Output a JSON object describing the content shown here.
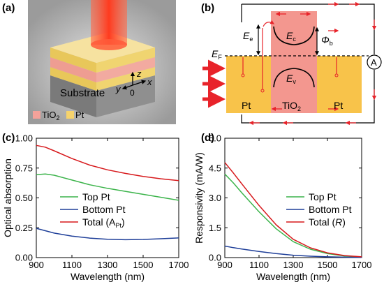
{
  "panel_a": {
    "label": "(a)",
    "substrate_label": "Substrate",
    "axis_z": "z",
    "axis_y": "y",
    "axis_x": "x",
    "axis_origin": "0",
    "legend": [
      {
        "name": "TiO",
        "sub": "2",
        "color": "#f4a29a"
      },
      {
        "name": "Pt",
        "sub": "",
        "color": "#f6d36c"
      }
    ]
  },
  "panel_b": {
    "label": "(b)",
    "ef_label": "E",
    "ef_sub": "F",
    "ee_label": "E",
    "ee_sub": "e",
    "ec_label": "E",
    "ec_sub": "c",
    "ev_label": "E",
    "ev_sub": "v",
    "phi_label": "Φ",
    "phi_sub": "b",
    "pt_left": "Pt",
    "tio2": "TiO",
    "tio2_sub": "2",
    "pt_right": "Pt",
    "meter": "A",
    "colors": {
      "pt": "#f8c34a",
      "tio2": "#f3978f",
      "arrow": "#e8232a"
    }
  },
  "chart_data": [
    {
      "panel": "(c)",
      "type": "line",
      "xlabel": "Wavelength (nm)",
      "ylabel": "Optical absorption",
      "xlim": [
        900,
        1700
      ],
      "ylim": [
        0.0,
        1.0
      ],
      "xticks": [
        "900",
        "1100",
        "1300",
        "1500",
        "1700"
      ],
      "yticks": [
        "0.00",
        "0.25",
        "0.50",
        "0.75",
        "1.00"
      ],
      "x": [
        900,
        950,
        1000,
        1100,
        1200,
        1300,
        1400,
        1500,
        1600,
        1700
      ],
      "series": [
        {
          "name": "Top Pt",
          "color": "#3cb44b",
          "values": [
            0.695,
            0.7,
            0.69,
            0.65,
            0.61,
            0.58,
            0.555,
            0.53,
            0.505,
            0.48
          ]
        },
        {
          "name": "Bottom Pt",
          "color": "#1f3f99",
          "values": [
            0.245,
            0.225,
            0.205,
            0.18,
            0.163,
            0.153,
            0.15,
            0.152,
            0.158,
            0.165
          ]
        },
        {
          "name": "Total (A",
          "name_sub": "Pt",
          "name_suffix": ")",
          "color": "#d7191c",
          "values": [
            0.94,
            0.925,
            0.895,
            0.83,
            0.775,
            0.735,
            0.705,
            0.68,
            0.66,
            0.645
          ]
        }
      ]
    },
    {
      "panel": "(d)",
      "type": "line",
      "xlabel": "Wavelength (nm)",
      "ylabel": "Responsivity (mA/W)",
      "xlim": [
        900,
        1700
      ],
      "ylim": [
        0.0,
        6.0
      ],
      "xticks": [
        "900",
        "1100",
        "1300",
        "1500",
        "1700"
      ],
      "yticks": [
        "0.0",
        "1.5",
        "3.0",
        "4.5",
        "6.0"
      ],
      "x": [
        900,
        950,
        1000,
        1100,
        1200,
        1300,
        1400,
        1500,
        1600,
        1700
      ],
      "series": [
        {
          "name": "Top Pt",
          "color": "#3cb44b",
          "values": [
            4.2,
            3.75,
            3.25,
            2.3,
            1.45,
            0.8,
            0.42,
            0.2,
            0.08,
            0.03
          ]
        },
        {
          "name": "Bottom Pt",
          "color": "#1f3f99",
          "values": [
            0.58,
            0.5,
            0.43,
            0.31,
            0.2,
            0.12,
            0.07,
            0.04,
            0.02,
            0.01
          ]
        },
        {
          "name": "Total (",
          "name_italic": "R",
          "name_suffix": ")",
          "color": "#d7191c",
          "values": [
            4.78,
            4.25,
            3.7,
            2.62,
            1.65,
            0.92,
            0.49,
            0.24,
            0.1,
            0.04
          ]
        }
      ]
    }
  ]
}
